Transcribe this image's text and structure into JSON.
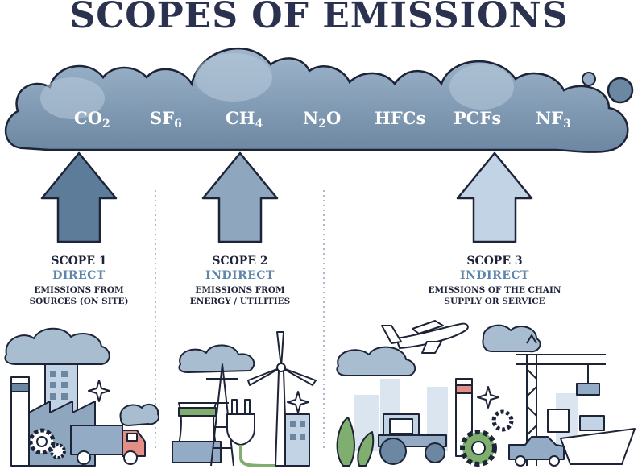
{
  "title": "SCOPES OF EMISSIONS",
  "gases": [
    {
      "base": "CO",
      "sub": "2"
    },
    {
      "base": "SF",
      "sub": "6"
    },
    {
      "base": "CH",
      "sub": "4"
    },
    {
      "base": "N",
      "sub": "2",
      "tail": "O"
    },
    {
      "base": "HFCs",
      "sub": ""
    },
    {
      "base": "PCFs",
      "sub": ""
    },
    {
      "base": "NF",
      "sub": "3"
    }
  ],
  "scopes": [
    {
      "name": "SCOPE 1",
      "kind": "DIRECT",
      "desc_line1": "EMISSIONS FROM",
      "desc_line2": "SOURCES (ON SITE)"
    },
    {
      "name": "SCOPE 2",
      "kind": "INDIRECT",
      "desc_line1": "EMISSIONS FROM",
      "desc_line2": "ENERGY / UTILITIES"
    },
    {
      "name": "SCOPE 3",
      "kind": "INDIRECT",
      "desc_line1": "EMISSIONS OF THE CHAIN",
      "desc_line2": "SUPPLY OR SERVICE"
    }
  ],
  "colors": {
    "title": "#2a3250",
    "cloud_dark": "#6e8aa6",
    "cloud_light": "#93abc4",
    "arrow_scope1": "#5d7c99",
    "arrow_scope2": "#8ea7bf",
    "arrow_scope3": "#c1d3e4",
    "accent": "#5f86a8",
    "outline": "#1e2438"
  },
  "icons": [
    "factory-icon",
    "truck-icon",
    "gear-icon",
    "power-plant-icon",
    "plug-icon",
    "wind-turbine-icon",
    "airplane-icon",
    "tractor-icon",
    "crane-icon",
    "ship-icon",
    "pickup-truck-icon",
    "sparkle-icon"
  ]
}
